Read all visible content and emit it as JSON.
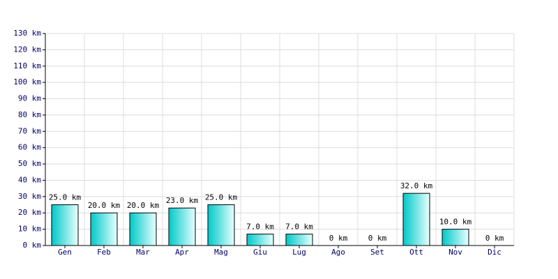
{
  "chart_data": {
    "type": "bar",
    "categories": [
      "Gen",
      "Feb",
      "Mar",
      "Apr",
      "Mag",
      "Giu",
      "Lug",
      "Ago",
      "Set",
      "Ott",
      "Nov",
      "Dic"
    ],
    "values": [
      25,
      20,
      20,
      23,
      25,
      7,
      7,
      0,
      0,
      32,
      10,
      0
    ],
    "value_labels": [
      "25.0 km",
      "20.0 km",
      "20.0 km",
      "23.0 km",
      "25.0 km",
      "7.0 km",
      "7.0 km",
      "0 km",
      "0 km",
      "32.0 km",
      "10.0 km",
      "0 km"
    ],
    "color": "#00c8c8",
    "ylim": [
      0,
      130
    ],
    "yticks": [
      {
        "value": 0,
        "label": "0 km"
      },
      {
        "value": 10,
        "label": "10 km"
      },
      {
        "value": 20,
        "label": "20 km"
      },
      {
        "value": 30,
        "label": "30 km"
      },
      {
        "value": 40,
        "label": "40 km"
      },
      {
        "value": 50,
        "label": "50 km"
      },
      {
        "value": 60,
        "label": "60 km"
      },
      {
        "value": 70,
        "label": "70 km"
      },
      {
        "value": 80,
        "label": "80 km"
      },
      {
        "value": 90,
        "label": "90 km"
      },
      {
        "value": 100,
        "label": "100 km"
      },
      {
        "value": 110,
        "label": "110 km"
      },
      {
        "value": 120,
        "label": "120 km"
      },
      {
        "value": 130,
        "label": "130 km"
      }
    ],
    "grid": true
  }
}
